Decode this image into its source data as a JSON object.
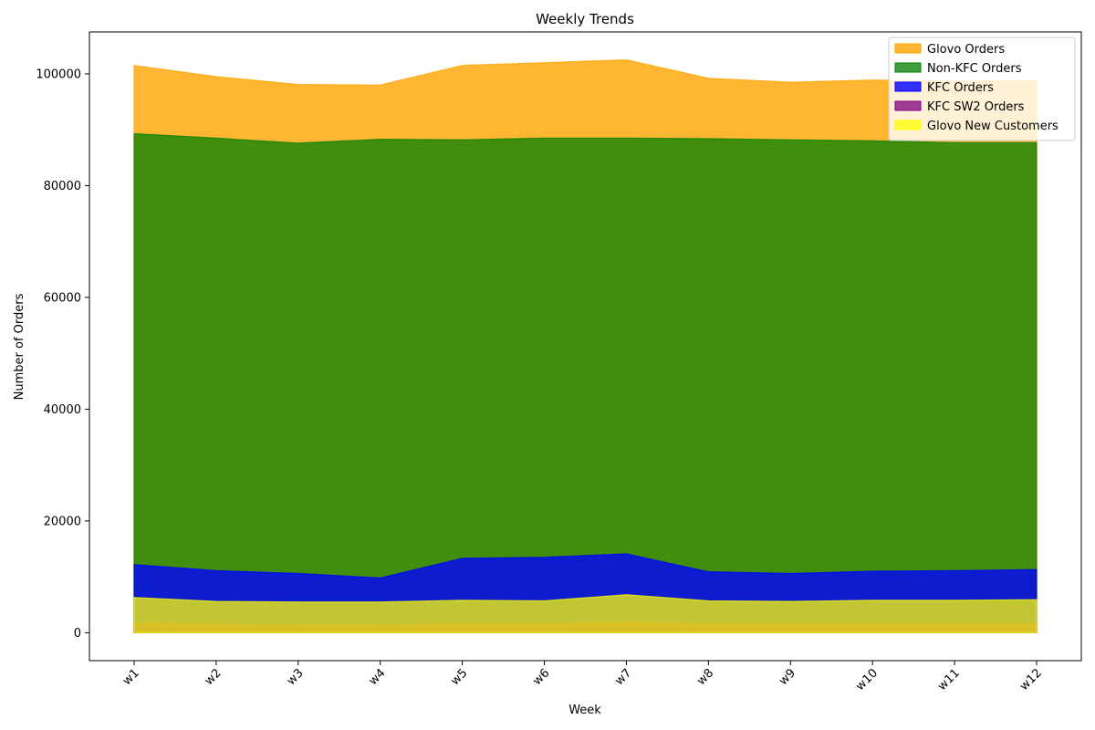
{
  "chart_data": {
    "type": "area",
    "title": "Weekly Trends",
    "xlabel": "Week",
    "ylabel": "Number of Orders",
    "categories": [
      "w1",
      "w2",
      "w3",
      "w4",
      "w5",
      "w6",
      "w7",
      "w8",
      "w9",
      "w10",
      "w11",
      "w12"
    ],
    "ylim": [
      -5000,
      107500
    ],
    "yticks": [
      0,
      20000,
      40000,
      60000,
      80000,
      100000
    ],
    "ytick_labels": [
      "0",
      "20000",
      "40000",
      "60000",
      "80000",
      "100000"
    ],
    "legend_position": "top-right",
    "series": [
      {
        "name": "Glovo Orders",
        "color": "#FFA500",
        "opacity": 0.8,
        "values": [
          101500,
          99500,
          98100,
          98000,
          101500,
          102000,
          102500,
          99200,
          98500,
          98900,
          98700,
          98800
        ]
      },
      {
        "name": "Non-KFC Orders",
        "color": "#008000",
        "opacity": 0.75,
        "values": [
          89300,
          88500,
          87600,
          88300,
          88200,
          88500,
          88500,
          88400,
          88200,
          88000,
          87700,
          87700
        ]
      },
      {
        "name": "KFC Orders",
        "color": "#0000FF",
        "opacity": 0.8,
        "values": [
          12200,
          11100,
          10600,
          9800,
          13300,
          13500,
          14100,
          10900,
          10600,
          11000,
          11100,
          11300
        ]
      },
      {
        "name": "KFC SW2 Orders",
        "color": "#800080",
        "opacity": 0.75,
        "values": [
          1800,
          1500,
          1400,
          1400,
          1600,
          1600,
          1900,
          1600,
          1500,
          1500,
          1500,
          1600
        ]
      },
      {
        "name": "Glovo New Customers",
        "color": "#FFFF00",
        "opacity": 0.75,
        "values": [
          6300,
          5600,
          5500,
          5500,
          5800,
          5700,
          6800,
          5700,
          5600,
          5800,
          5800,
          5900
        ]
      }
    ]
  }
}
